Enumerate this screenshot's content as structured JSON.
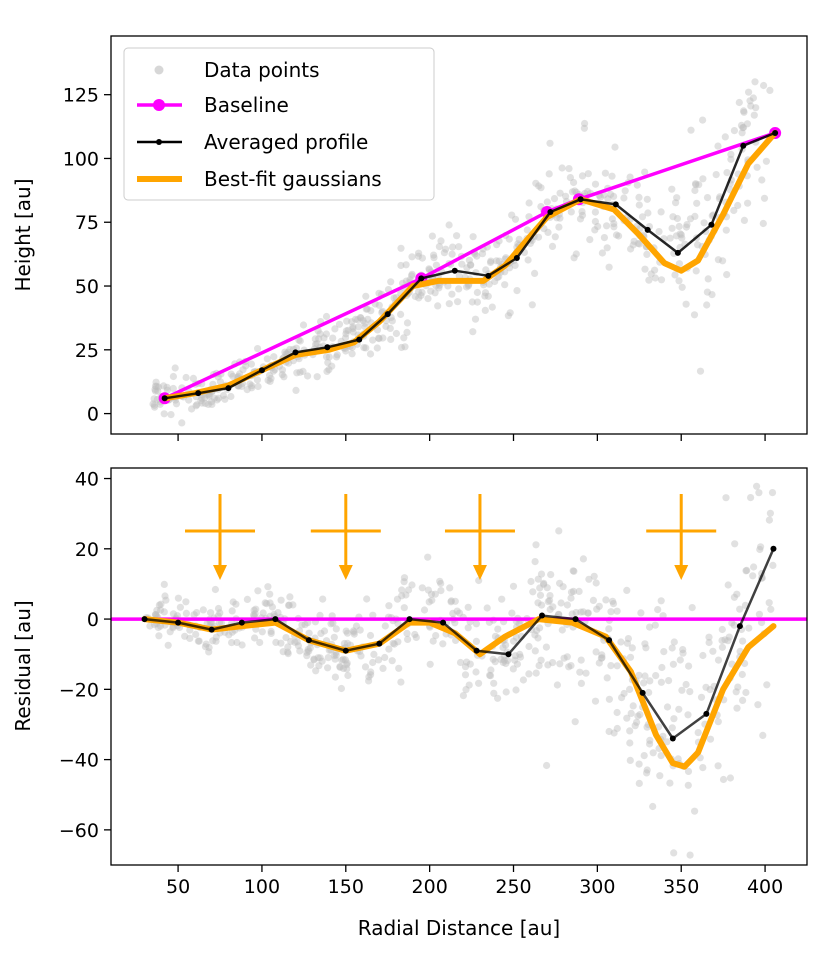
{
  "chart_data": [
    {
      "type": "line",
      "panel": "top",
      "xlabel": "",
      "ylabel": "Height [au]",
      "xlim": [
        10,
        425
      ],
      "ylim": [
        -8,
        148
      ],
      "yticks": [
        0,
        25,
        50,
        75,
        100,
        125
      ],
      "grid": false,
      "legend": {
        "placement": "top-left",
        "entries": [
          "Data points",
          "Baseline",
          "Averaged profile",
          "Best-fit gaussians"
        ]
      },
      "series": [
        {
          "name": "Baseline",
          "color": "#ff00ff",
          "x": [
            42,
            195,
            270,
            289,
            406
          ],
          "y": [
            6,
            53,
            79,
            84,
            110
          ]
        },
        {
          "name": "Averaged profile",
          "color": "#000000",
          "x": [
            42,
            62,
            80,
            100,
            120,
            139,
            158,
            175,
            195,
            215,
            235,
            252,
            272,
            290,
            311,
            330,
            348,
            368,
            387,
            406
          ],
          "y": [
            6,
            8,
            10,
            17,
            24,
            26,
            29,
            39,
            53,
            56,
            54,
            61,
            79,
            84,
            82,
            72,
            63,
            74,
            105,
            110
          ]
        },
        {
          "name": "Best-fit gaussians",
          "color": "#ffa500",
          "x": [
            42,
            60,
            80,
            100,
            120,
            140,
            155,
            170,
            190,
            205,
            220,
            232,
            245,
            258,
            270,
            290,
            310,
            325,
            340,
            350,
            360,
            375,
            390,
            406
          ],
          "y": [
            6,
            8,
            11,
            17,
            23,
            25,
            28,
            36,
            50,
            52,
            52,
            52,
            58,
            68,
            77,
            84,
            80,
            70,
            59,
            56,
            60,
            78,
            98,
            110
          ]
        }
      ]
    },
    {
      "type": "line",
      "panel": "bottom",
      "xlabel": "Radial Distance [au]",
      "ylabel": "Residual [au]",
      "xlim": [
        10,
        425
      ],
      "ylim": [
        -70,
        43
      ],
      "xticks": [
        50,
        100,
        150,
        200,
        250,
        300,
        350,
        400
      ],
      "yticks": [
        -60,
        -40,
        -20,
        0,
        20,
        40
      ],
      "grid": false,
      "series": [
        {
          "name": "Baseline",
          "color": "#ff00ff",
          "x": [
            10,
            425
          ],
          "y": [
            0,
            0
          ]
        },
        {
          "name": "Averaged profile",
          "color": "#000000",
          "x": [
            30,
            50,
            70,
            88,
            108,
            128,
            150,
            170,
            188,
            208,
            228,
            247,
            267,
            287,
            307,
            327,
            345,
            365,
            385,
            405
          ],
          "y": [
            0,
            -1,
            -3,
            -1,
            0,
            -6,
            -9,
            -7,
            0,
            -1,
            -9,
            -10,
            1,
            0,
            -6,
            -21,
            -34,
            -27,
            -2,
            20
          ]
        },
        {
          "name": "Best-fit gaussians",
          "color": "#ffa500",
          "x": [
            30,
            50,
            70,
            88,
            108,
            128,
            150,
            170,
            188,
            200,
            215,
            230,
            245,
            265,
            285,
            305,
            320,
            335,
            345,
            352,
            360,
            375,
            390,
            405
          ],
          "y": [
            0,
            -1,
            -3,
            -2,
            -1,
            -6,
            -9,
            -7,
            -1,
            -1,
            -4,
            -10,
            -5,
            0,
            -1,
            -5,
            -15,
            -33,
            -41,
            -42,
            -38,
            -20,
            -8,
            -2
          ]
        }
      ],
      "markers": [
        {
          "type": "arrow-cross",
          "x": 75
        },
        {
          "type": "arrow-cross",
          "x": 150
        },
        {
          "type": "arrow-cross",
          "x": 230
        },
        {
          "type": "arrow-cross",
          "x": 350
        }
      ]
    }
  ],
  "colors": {
    "data_points": "#bdbdbd",
    "baseline": "#ff00ff",
    "profile": "#000000",
    "gaussians": "#ffa500"
  }
}
